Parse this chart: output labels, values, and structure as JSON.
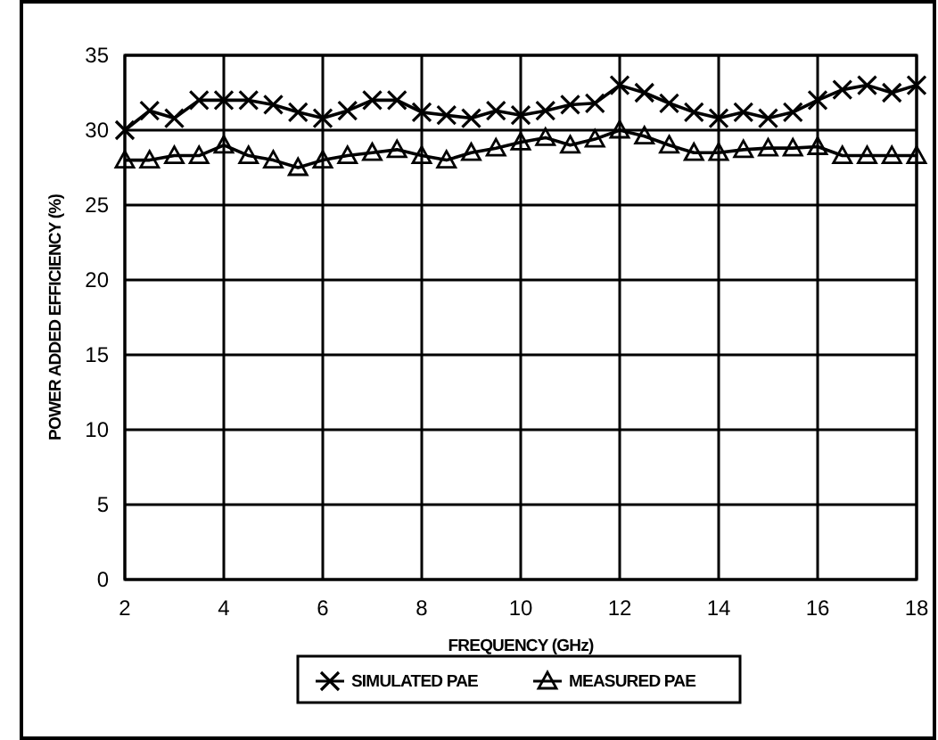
{
  "chart_data": {
    "type": "line",
    "xlabel": "FREQUENCY (GHz)",
    "ylabel": "POWER ADDED EFFICIENCY (%)",
    "x": [
      2,
      2.5,
      3,
      3.5,
      4,
      4.5,
      5,
      5.5,
      6,
      6.5,
      7,
      7.5,
      8,
      8.5,
      9,
      9.5,
      10,
      10.5,
      11,
      11.5,
      12,
      12.5,
      13,
      13.5,
      14,
      14.5,
      15,
      15.5,
      16,
      16.5,
      17,
      17.5,
      18
    ],
    "series": [
      {
        "name": "SIMULATED PAE",
        "color": "#000000",
        "marker": "cross",
        "values": [
          30,
          31.3,
          30.8,
          32,
          32,
          32,
          31.7,
          31.2,
          30.8,
          31.3,
          32,
          32,
          31.2,
          31,
          30.8,
          31.3,
          31,
          31.3,
          31.7,
          31.8,
          33,
          32.5,
          31.8,
          31.2,
          30.8,
          31.2,
          30.8,
          31.2,
          32,
          32.7,
          33,
          32.5,
          33
        ]
      },
      {
        "name": "MEASURED PAE",
        "color": "#000000",
        "marker": "triangle",
        "values": [
          28,
          28,
          28.3,
          28.3,
          29,
          28.3,
          28,
          27.5,
          28,
          28.3,
          28.5,
          28.7,
          28.3,
          28,
          28.5,
          28.8,
          29.2,
          29.5,
          29,
          29.4,
          30,
          29.6,
          29,
          28.5,
          28.5,
          28.7,
          28.8,
          28.8,
          28.9,
          28.3,
          28.3,
          28.3,
          28.3
        ]
      }
    ],
    "xlim": [
      2,
      18
    ],
    "xticks": [
      2,
      4,
      6,
      8,
      10,
      12,
      14,
      16,
      18
    ],
    "ylim": [
      0,
      35
    ],
    "yticks": [
      0,
      5,
      10,
      15,
      20,
      25,
      30,
      35
    ],
    "grid": true,
    "legend": "bottom",
    "line_style": "solid"
  }
}
